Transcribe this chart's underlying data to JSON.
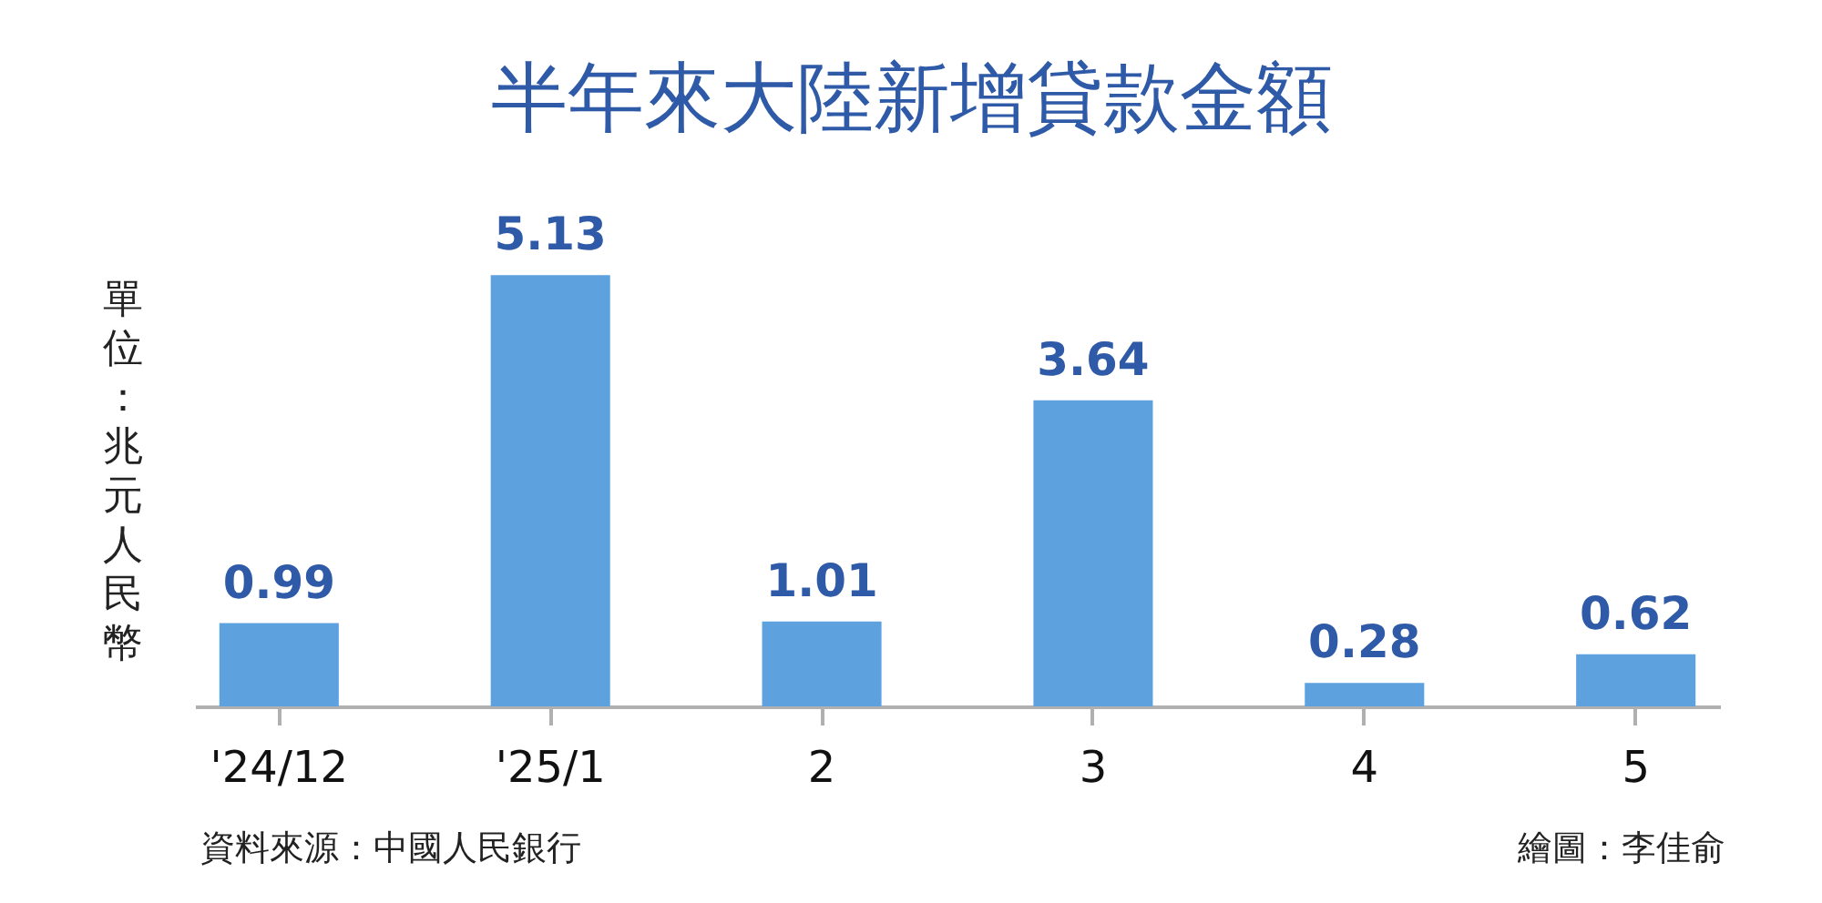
{
  "chart_data": {
    "type": "bar",
    "title": "半年來大陸新增貸款金額",
    "ylabel": "單位：兆元人民幣",
    "categories": [
      "'24/12",
      "'25/1",
      "2",
      "3",
      "4",
      "5"
    ],
    "values": [
      0.99,
      5.13,
      1.01,
      3.64,
      0.28,
      0.62
    ],
    "color": "#5da2df",
    "data_labels": true,
    "grid": false,
    "tick_labels": "x",
    "annotations": [
      "資料來源：中國人民銀行",
      "繪圖：李佳俞"
    ]
  }
}
